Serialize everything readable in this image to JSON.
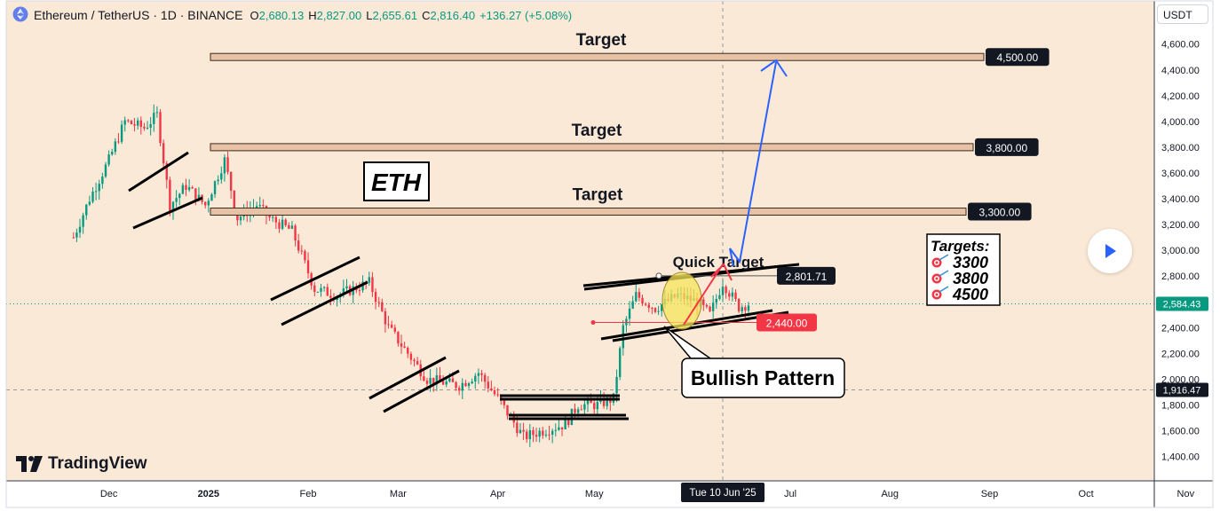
{
  "header": {
    "symbol": "Ethereum / TetherUS · 1D · BINANCE",
    "open_label": "O",
    "open": "2,680.13",
    "high_label": "H",
    "high": "2,827.00",
    "low_label": "L",
    "low": "2,655.61",
    "close_label": "C",
    "close": "2,816.40",
    "change": "+136.27 (+5.08%)"
  },
  "currency_button": "USDT",
  "brand": "TradingView",
  "colors": {
    "background": "#fbe9d7",
    "up": "#089981",
    "down": "#f23645",
    "target_band": "#e8c2a4",
    "arrow_blue": "#2962ff",
    "arrow_red": "#f23645",
    "highlight": "#f5e45a"
  },
  "chart_data": {
    "type": "candlestick",
    "title": "Ethereum / TetherUS · 1D · BINANCE",
    "y_unit": "USDT",
    "ylim": [
      1300,
      4800
    ],
    "y_ticks": [
      "4,600.00",
      "4,400.00",
      "4,200.00",
      "4,000.00",
      "3,800.00",
      "3,600.00",
      "3,400.00",
      "3,200.00",
      "3,000.00",
      "2,800.00",
      "2,600.00",
      "2,400.00",
      "2,200.00",
      "2,000.00",
      "1,800.00",
      "1,600.00",
      "1,400.00"
    ],
    "x_ticks": [
      "Dec",
      "2025",
      "Feb",
      "Mar",
      "Apr",
      "May",
      "Jul",
      "Aug",
      "Sep",
      "Oct",
      "Nov"
    ],
    "crosshair_date": "Tue 10 Jun '25",
    "last_price": "2,584.43",
    "crosshair_price": "1,916.47",
    "targets": [
      {
        "label": "Target",
        "value": 4500,
        "value_label": "4,500.00"
      },
      {
        "label": "Target",
        "value": 3800,
        "value_label": "3,800.00"
      },
      {
        "label": "Target",
        "value": 3300,
        "value_label": "3,300.00"
      }
    ],
    "quick_target": {
      "label": "Quick Target",
      "value": 2801.71,
      "value_label": "2,801.71"
    },
    "stop_level": {
      "value": 2440,
      "value_label": "2,440.00"
    },
    "annotations": {
      "eth_box": "ETH",
      "pattern_callout": "Bullish Pattern",
      "targets_box_title": "Targets:",
      "targets_list": [
        "3300",
        "3800",
        "4500"
      ]
    },
    "close_path": [
      [
        "2024-11-20",
        3100
      ],
      [
        "2024-11-25",
        3400
      ],
      [
        "2024-12-01",
        3700
      ],
      [
        "2024-12-06",
        4000
      ],
      [
        "2024-12-12",
        3950
      ],
      [
        "2024-12-16",
        4050
      ],
      [
        "2024-12-20",
        3350
      ],
      [
        "2024-12-25",
        3500
      ],
      [
        "2024-12-31",
        3350
      ],
      [
        "2025-01-06",
        3700
      ],
      [
        "2025-01-10",
        3250
      ],
      [
        "2025-01-16",
        3350
      ],
      [
        "2025-01-20",
        3250
      ],
      [
        "2025-01-27",
        3150
      ],
      [
        "2025-02-03",
        2700
      ],
      [
        "2025-02-10",
        2650
      ],
      [
        "2025-02-20",
        2750
      ],
      [
        "2025-02-26",
        2400
      ],
      [
        "2025-03-04",
        2200
      ],
      [
        "2025-03-10",
        2000
      ],
      [
        "2025-03-20",
        1950
      ],
      [
        "2025-03-26",
        2050
      ],
      [
        "2025-04-01",
        1850
      ],
      [
        "2025-04-09",
        1550
      ],
      [
        "2025-04-15",
        1600
      ],
      [
        "2025-04-22",
        1650
      ],
      [
        "2025-04-26",
        1800
      ],
      [
        "2025-05-02",
        1800
      ],
      [
        "2025-05-07",
        1850
      ],
      [
        "2025-05-10",
        2400
      ],
      [
        "2025-05-14",
        2650
      ],
      [
        "2025-05-20",
        2550
      ],
      [
        "2025-05-27",
        2650
      ],
      [
        "2025-06-02",
        2600
      ],
      [
        "2025-06-06",
        2500
      ],
      [
        "2025-06-10",
        2750
      ],
      [
        "2025-06-15",
        2560
      ],
      [
        "2025-06-18",
        2584
      ]
    ]
  }
}
